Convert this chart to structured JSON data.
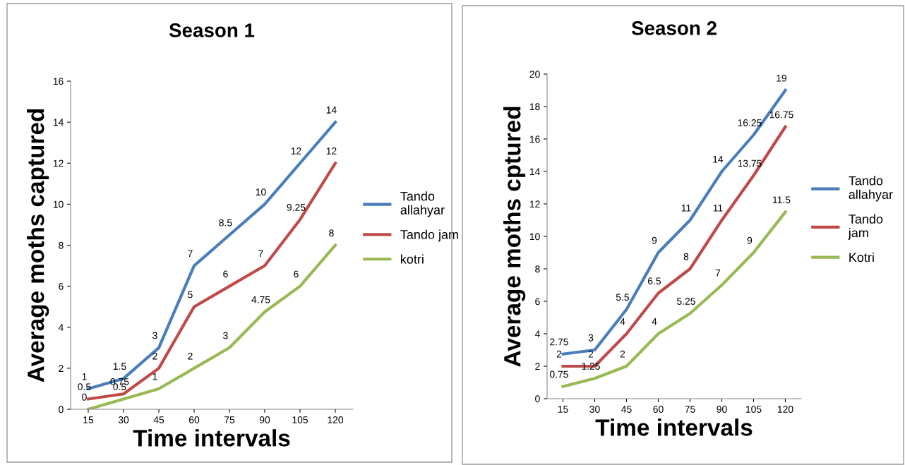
{
  "chart_data": [
    {
      "type": "line",
      "title": "Season 1",
      "xlabel": "Time intervals",
      "ylabel": "Average moths captured",
      "categories": [
        "15",
        "30",
        "45",
        "60",
        "75",
        "90",
        "105",
        "120"
      ],
      "ylim": [
        0,
        16
      ],
      "yticks": [
        0,
        2,
        4,
        6,
        8,
        10,
        12,
        14,
        16
      ],
      "grid": false,
      "legend": "right",
      "data_labels": true,
      "marker": "none",
      "line_style": "solid",
      "series": [
        {
          "name": "Tando allahyar",
          "color": "#4a7ebb",
          "values": [
            1,
            1.5,
            3,
            7,
            8.5,
            10,
            12,
            14
          ]
        },
        {
          "name": "Tando jam",
          "color": "#be4b48",
          "values": [
            0.5,
            0.75,
            2,
            5,
            6,
            7,
            9.25,
            12
          ]
        },
        {
          "name": "kotri",
          "color": "#98b954",
          "values": [
            0,
            0.5,
            1,
            2,
            3,
            4.75,
            6,
            8
          ]
        }
      ]
    },
    {
      "type": "line",
      "title": "Season 2",
      "xlabel": "Time intervals",
      "ylabel": "Average moths cptured",
      "categories": [
        "15",
        "30",
        "45",
        "60",
        "75",
        "90",
        "105",
        "120"
      ],
      "ylim": [
        0,
        20
      ],
      "yticks": [
        0,
        2,
        4,
        6,
        8,
        10,
        12,
        14,
        16,
        18,
        20
      ],
      "grid": false,
      "legend": "right",
      "data_labels": true,
      "marker": "none",
      "line_style": "solid",
      "series": [
        {
          "name": "Tando allahyar",
          "color": "#4a7ebb",
          "values": [
            2.75,
            3,
            5.5,
            9,
            11,
            14,
            16.25,
            19
          ]
        },
        {
          "name": "Tando jam",
          "color": "#be4b48",
          "values": [
            2,
            2,
            4,
            6.5,
            8,
            11,
            13.75,
            16.75
          ]
        },
        {
          "name": "Kotri",
          "color": "#98b954",
          "values": [
            0.75,
            1.25,
            2,
            4,
            5.25,
            7,
            9,
            11.5
          ]
        }
      ]
    }
  ]
}
